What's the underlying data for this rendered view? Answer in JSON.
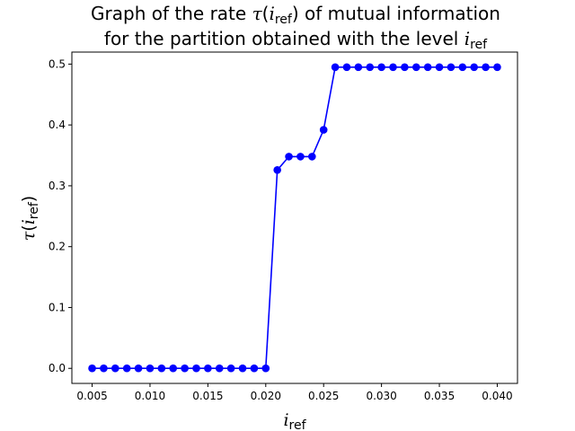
{
  "chart_data": {
    "type": "line",
    "title_line1_prefix": "Graph of the rate ",
    "title_line1_symbol": "τ",
    "title_line1_open": "(",
    "title_line1_var": "i",
    "title_line1_sub": "ref",
    "title_line1_close": ")",
    "title_line1_suffix": " of mutual information",
    "title_line2_prefix": "for the partition obtained with the level ",
    "title_line2_var": "i",
    "title_line2_sub": "ref",
    "xlabel_var": "i",
    "xlabel_sub": "ref",
    "ylabel_symbol": "τ",
    "ylabel_open": "(",
    "ylabel_var": "i",
    "ylabel_sub": "ref",
    "ylabel_close": ")",
    "xlim": [
      0.00325,
      0.04175
    ],
    "ylim": [
      -0.02475,
      0.51975
    ],
    "x_ticks": [
      0.005,
      0.01,
      0.015,
      0.02,
      0.025,
      0.03,
      0.035,
      0.04
    ],
    "x_tick_labels": [
      "0.005",
      "0.010",
      "0.015",
      "0.020",
      "0.025",
      "0.030",
      "0.035",
      "0.040"
    ],
    "y_ticks": [
      0.0,
      0.1,
      0.2,
      0.3,
      0.4,
      0.5
    ],
    "y_tick_labels": [
      "0.0",
      "0.1",
      "0.2",
      "0.3",
      "0.4",
      "0.5"
    ],
    "grid": false,
    "line_color": "#0000ff",
    "series": [
      {
        "x": [
          0.005,
          0.006,
          0.007,
          0.008,
          0.009,
          0.01,
          0.011,
          0.012,
          0.013,
          0.014,
          0.015,
          0.016,
          0.017,
          0.018,
          0.019,
          0.02,
          0.021,
          0.022,
          0.023,
          0.024,
          0.025,
          0.026,
          0.027,
          0.028,
          0.029,
          0.03,
          0.031,
          0.032,
          0.033,
          0.034,
          0.035,
          0.036,
          0.037,
          0.038,
          0.039,
          0.04
        ],
        "y": [
          0.0,
          0.0,
          0.0,
          0.0,
          0.0,
          0.0,
          0.0,
          0.0,
          0.0,
          0.0,
          0.0,
          0.0,
          0.0,
          0.0,
          0.0,
          0.0,
          0.326,
          0.348,
          0.348,
          0.348,
          0.392,
          0.495,
          0.495,
          0.495,
          0.495,
          0.495,
          0.495,
          0.495,
          0.495,
          0.495,
          0.495,
          0.495,
          0.495,
          0.495,
          0.495,
          0.495
        ]
      }
    ]
  }
}
